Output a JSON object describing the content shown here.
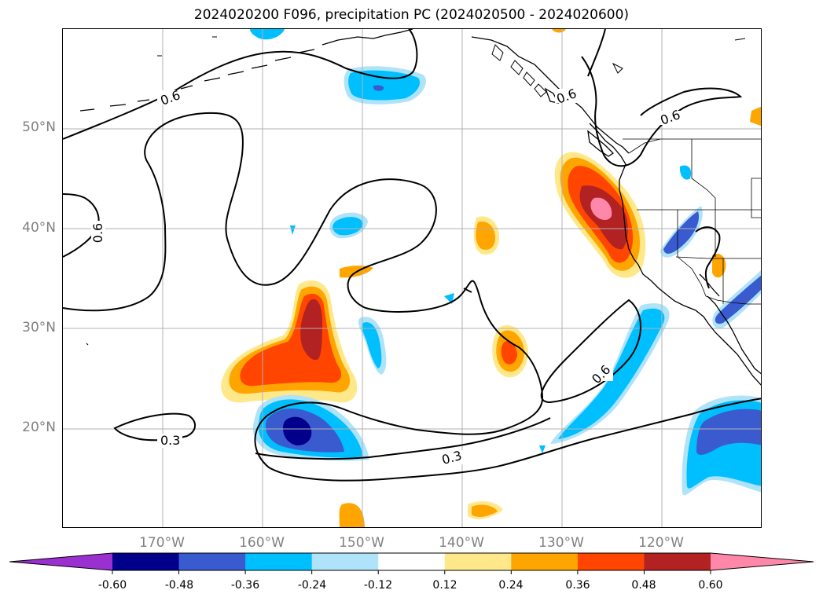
{
  "title": "2024020200 F096, precipitation PC (2024020500 - 2024020600)",
  "map": {
    "lat_labels": [
      "50°N",
      "40°N",
      "30°N",
      "20°N"
    ],
    "lon_labels": [
      "170°W",
      "160°W",
      "150°W",
      "140°W",
      "130°W",
      "120°W"
    ],
    "contour_labels": [
      "0.6",
      "0.6",
      "0.6",
      "0.6",
      "0.6",
      "0.3",
      "0.3"
    ],
    "extent": {
      "lon_min": -180,
      "lon_max": -110,
      "lat_min": 10,
      "lat_max": 60
    },
    "grid": true
  },
  "colorbar": {
    "ticks": [
      "-0.60",
      "-0.48",
      "-0.36",
      "-0.24",
      "-0.12",
      "0.12",
      "0.24",
      "0.36",
      "0.48",
      "0.60"
    ],
    "colors": [
      "#9b30d0",
      "#00008b",
      "#3a5bd0",
      "#00bfff",
      "#aee3fa",
      "#ffffff",
      "#ffe88a",
      "#ffa500",
      "#ff4500",
      "#b22222",
      "#ff88aa"
    ],
    "extend": "both"
  }
}
